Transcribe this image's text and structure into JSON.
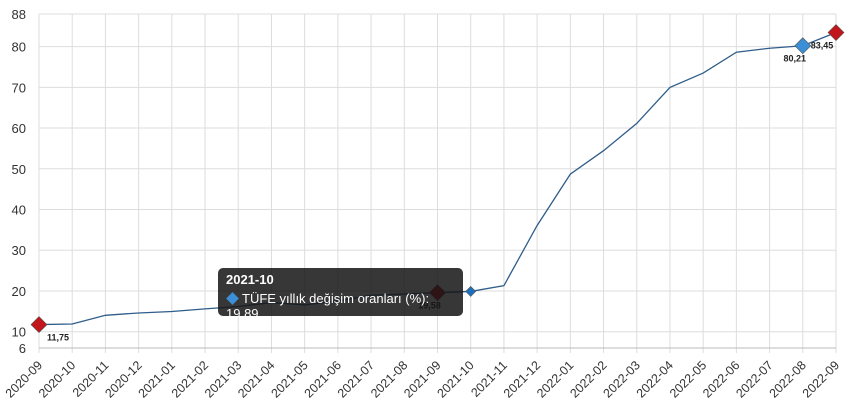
{
  "chart_data": {
    "type": "line",
    "categories": [
      "2020-09",
      "2020-10",
      "2020-11",
      "2020-12",
      "2021-01",
      "2021-02",
      "2021-03",
      "2021-04",
      "2021-05",
      "2021-06",
      "2021-07",
      "2021-08",
      "2021-09",
      "2021-10",
      "2021-11",
      "2021-12",
      "2022-01",
      "2022-02",
      "2022-03",
      "2022-04",
      "2022-05",
      "2022-06",
      "2022-07",
      "2022-08",
      "2022-09"
    ],
    "series": [
      {
        "name": "TÜFE yıllık değişim oranları (%)",
        "values": [
          11.75,
          11.89,
          14.03,
          14.6,
          14.97,
          15.61,
          16.19,
          17.14,
          16.59,
          17.53,
          18.95,
          19.25,
          19.58,
          19.89,
          21.31,
          36.08,
          48.69,
          54.44,
          61.14,
          69.97,
          73.5,
          78.62,
          79.6,
          80.21,
          83.45
        ],
        "color": "#2f5d8a"
      }
    ],
    "ylim": [
      6,
      88
    ],
    "yticks": [
      6,
      10,
      20,
      30,
      40,
      50,
      60,
      70,
      80,
      88
    ],
    "grid": true,
    "highlighted_points": [
      {
        "category": "2020-09",
        "label": "11,75",
        "color": "#c0161c"
      },
      {
        "category": "2021-09",
        "label": "19,58",
        "color": "#c0161c"
      },
      {
        "category": "2022-08",
        "label": "80,21",
        "color": "#3a8fd6"
      },
      {
        "category": "2022-09",
        "label": "83,45",
        "color": "#c0161c"
      }
    ],
    "tooltip": {
      "title": "2021-10",
      "series": "TÜFE yıllık değişim oranları (%)",
      "value": "19,89",
      "text": "TÜFE yıllık değişim oranları (%): 19,89"
    }
  }
}
